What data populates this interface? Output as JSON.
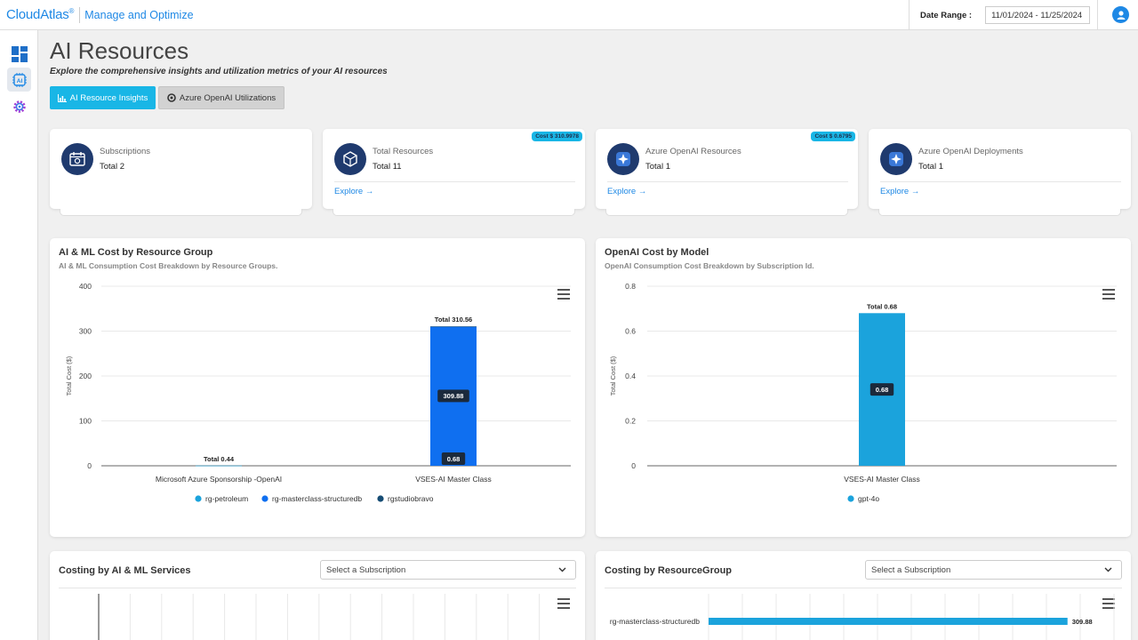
{
  "app": {
    "brand": "CloudAtlas",
    "brand_mark": "®",
    "subtitle": "Manage and Optimize"
  },
  "header": {
    "date_label": "Date Range :",
    "date_value": "11/01/2024 - 11/25/2024"
  },
  "sidebar": {
    "items": [
      {
        "icon": "dashboard-icon"
      },
      {
        "icon": "ai-chip-icon",
        "active": true
      },
      {
        "icon": "gear-icon"
      }
    ]
  },
  "page": {
    "title": "AI Resources",
    "subtitle": "Explore the comprehensive insights and utilization metrics of your AI resources",
    "tabs": [
      {
        "label": "AI Resource Insights",
        "active": true
      },
      {
        "label": "Azure OpenAI Utilizations",
        "active": false
      }
    ]
  },
  "cards": [
    {
      "title": "Subscriptions",
      "total": "Total 2",
      "icon": "subscription-icon"
    },
    {
      "title": "Total Resources",
      "total": "Total 11",
      "link": "Explore →",
      "badge": "Cost $   310.9978",
      "icon": "resources-icon"
    },
    {
      "title": "Azure OpenAI Resources",
      "total": "Total  1",
      "link": "Explore →",
      "badge": "Cost $ 0.6795",
      "icon": "openai-icon"
    },
    {
      "title": "Azure OpenAI Deployments",
      "total": "Total 1",
      "link": "Explore →",
      "icon": "openai-icon"
    }
  ],
  "panels": {
    "rg_cost": {
      "title": "AI & ML Cost by Resource Group",
      "subtitle": "AI & ML Consumption Cost Breakdown by Resource Groups."
    },
    "model_cost": {
      "title": "OpenAI Cost by Model",
      "subtitle": "OpenAI Consumption Cost Breakdown by Subscription Id."
    },
    "services": {
      "title": "Costing by AI & ML Services",
      "select_placeholder": "Select a Subscription"
    },
    "resource_group": {
      "title": "Costing by ResourceGroup",
      "select_placeholder": "Select a Subscription"
    }
  },
  "colors": {
    "accent": "#19b6e6",
    "rg_petroleum": "#1ba3dc",
    "rg_masterclass": "#0f6ff0",
    "rgstudiobravo": "#164c74",
    "gpt4o": "#1ba3dc",
    "navy": "#1f3a6e"
  },
  "chart_data": [
    {
      "type": "bar",
      "stacked": true,
      "title": "AI & ML Cost by Resource Group",
      "ylabel": "Total Cost ($)",
      "ylim": [
        0,
        400
      ],
      "yticks": [
        "0",
        "100",
        "200",
        "300",
        "400"
      ],
      "categories": [
        "Microsoft Azure Sponsorship -OpenAI",
        "VSES-AI Master Class"
      ],
      "series": [
        {
          "name": "rg-petroleum",
          "values": [
            0.44,
            0
          ]
        },
        {
          "name": "rg-masterclass-structuredb",
          "values": [
            0,
            309.88
          ]
        },
        {
          "name": "rgstudiobravo",
          "values": [
            0,
            0.68
          ]
        }
      ],
      "totals": [
        "Total 0.44",
        "Total 310.56"
      ],
      "data_labels": [
        "309.88",
        "0.68"
      ],
      "legend": "bottom"
    },
    {
      "type": "bar",
      "title": "OpenAI Cost by Model",
      "ylabel": "Total Cost ($)",
      "ylim": [
        0,
        0.8
      ],
      "yticks": [
        "0",
        "0.2",
        "0.4",
        "0.6",
        "0.8"
      ],
      "categories": [
        "VSES-AI Master Class"
      ],
      "series": [
        {
          "name": "gpt-4o",
          "values": [
            0.68
          ]
        }
      ],
      "totals": [
        "Total 0.68"
      ],
      "data_labels": [
        "0.68"
      ],
      "legend": "bottom"
    },
    {
      "type": "bar",
      "orientation": "horizontal",
      "title": "Costing by ResourceGroup",
      "categories": [
        "rg-masterclass-structuredb"
      ],
      "values": [
        309.88
      ],
      "data_labels": [
        "309.88"
      ]
    }
  ]
}
